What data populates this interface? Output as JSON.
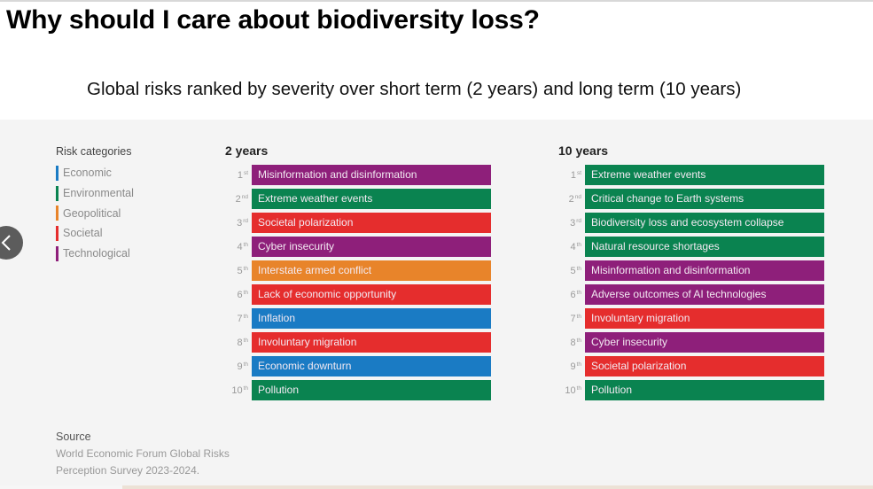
{
  "page": {
    "title": "Why should I care about biodiversity loss?",
    "subtitle": "Global risks ranked by severity over short term (2 years) and long term (10 years)"
  },
  "navigation": {
    "prev_icon": "chevron-left-icon"
  },
  "legend": {
    "title": "Risk categories",
    "items": [
      {
        "label": "Economic",
        "color": "#1a7bc4"
      },
      {
        "label": "Environmental",
        "color": "#0a8350"
      },
      {
        "label": "Geopolitical",
        "color": "#e8842a"
      },
      {
        "label": "Societal",
        "color": "#e52d2d"
      },
      {
        "label": "Technological",
        "color": "#8e1f7a"
      }
    ]
  },
  "source": {
    "title": "Source",
    "lines": [
      "World Economic Forum Global Risks",
      "Perception Survey 2023-2024."
    ]
  },
  "chart_data": {
    "type": "table",
    "title": "Global risks ranked by severity over short term (2 years) and long term (10 years)",
    "category_colors": {
      "Economic": "#1a7bc4",
      "Environmental": "#0a8350",
      "Geopolitical": "#e8842a",
      "Societal": "#e52d2d",
      "Technological": "#8e1f7a"
    },
    "columns": [
      {
        "title": "2 years",
        "rows": [
          {
            "rank": "1",
            "suffix": "st",
            "label": "Misinformation and disinformation",
            "category": "Technological"
          },
          {
            "rank": "2",
            "suffix": "nd",
            "label": "Extreme weather events",
            "category": "Environmental"
          },
          {
            "rank": "3",
            "suffix": "rd",
            "label": "Societal polarization",
            "category": "Societal"
          },
          {
            "rank": "4",
            "suffix": "th",
            "label": "Cyber insecurity",
            "category": "Technological"
          },
          {
            "rank": "5",
            "suffix": "th",
            "label": "Interstate armed conflict",
            "category": "Geopolitical"
          },
          {
            "rank": "6",
            "suffix": "th",
            "label": "Lack of economic opportunity",
            "category": "Societal"
          },
          {
            "rank": "7",
            "suffix": "th",
            "label": "Inflation",
            "category": "Economic"
          },
          {
            "rank": "8",
            "suffix": "th",
            "label": "Involuntary migration",
            "category": "Societal"
          },
          {
            "rank": "9",
            "suffix": "th",
            "label": "Economic downturn",
            "category": "Economic"
          },
          {
            "rank": "10",
            "suffix": "th",
            "label": "Pollution",
            "category": "Environmental"
          }
        ]
      },
      {
        "title": "10 years",
        "rows": [
          {
            "rank": "1",
            "suffix": "st",
            "label": "Extreme weather events",
            "category": "Environmental"
          },
          {
            "rank": "2",
            "suffix": "nd",
            "label": "Critical change to Earth systems",
            "category": "Environmental"
          },
          {
            "rank": "3",
            "suffix": "rd",
            "label": "Biodiversity loss and ecosystem collapse",
            "category": "Environmental"
          },
          {
            "rank": "4",
            "suffix": "th",
            "label": "Natural resource shortages",
            "category": "Environmental"
          },
          {
            "rank": "5",
            "suffix": "th",
            "label": "Misinformation and disinformation",
            "category": "Technological"
          },
          {
            "rank": "6",
            "suffix": "th",
            "label": "Adverse outcomes of AI technologies",
            "category": "Technological"
          },
          {
            "rank": "7",
            "suffix": "th",
            "label": "Involuntary migration",
            "category": "Societal"
          },
          {
            "rank": "8",
            "suffix": "th",
            "label": "Cyber insecurity",
            "category": "Technological"
          },
          {
            "rank": "9",
            "suffix": "th",
            "label": "Societal polarization",
            "category": "Societal"
          },
          {
            "rank": "10",
            "suffix": "th",
            "label": "Pollution",
            "category": "Environmental"
          }
        ]
      }
    ]
  }
}
